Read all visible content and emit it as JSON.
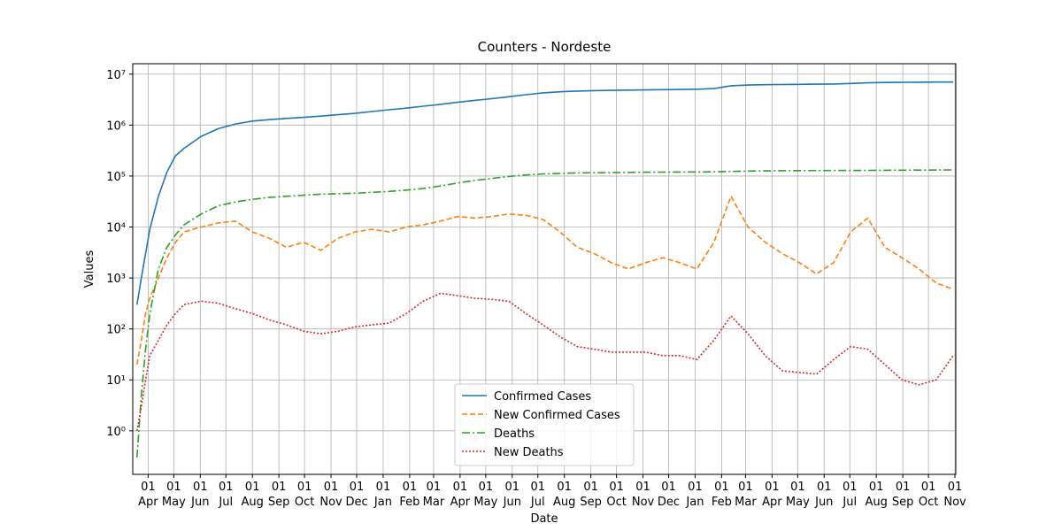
{
  "chart_data": {
    "type": "line",
    "title": "Counters - Nordeste",
    "xlabel": "Date",
    "ylabel": "Values",
    "yscale": "log",
    "grid": true,
    "legend": "lower center",
    "x": [
      5,
      10,
      15,
      20,
      30,
      40,
      50,
      60,
      80,
      100,
      120,
      140,
      160,
      180,
      200,
      220,
      240,
      260,
      280,
      300,
      320,
      340,
      360,
      380,
      400,
      420,
      440,
      460,
      480,
      500,
      520,
      540,
      560,
      580,
      600,
      620,
      640,
      660,
      680,
      700,
      720,
      740,
      760,
      780,
      800,
      820,
      840,
      860,
      880,
      900,
      920,
      940,
      960
    ],
    "xlim": [
      0,
      963
    ],
    "xticks": [
      {
        "value": 18,
        "label": "01\nApr"
      },
      {
        "value": 48,
        "label": "01\nMay"
      },
      {
        "value": 79,
        "label": "01\nJun"
      },
      {
        "value": 109,
        "label": "01\nJul"
      },
      {
        "value": 140,
        "label": "01\nAug"
      },
      {
        "value": 171,
        "label": "01\nSep"
      },
      {
        "value": 201,
        "label": "01\nOct"
      },
      {
        "value": 232,
        "label": "01\nNov"
      },
      {
        "value": 262,
        "label": "01\nDec"
      },
      {
        "value": 293,
        "label": "01\nJan"
      },
      {
        "value": 324,
        "label": "01\nFeb"
      },
      {
        "value": 352,
        "label": "01\nMar"
      },
      {
        "value": 383,
        "label": "01\nApr"
      },
      {
        "value": 413,
        "label": "01\nMay"
      },
      {
        "value": 444,
        "label": "01\nJun"
      },
      {
        "value": 474,
        "label": "01\nJul"
      },
      {
        "value": 505,
        "label": "01\nAug"
      },
      {
        "value": 536,
        "label": "01\nSep"
      },
      {
        "value": 566,
        "label": "01\nOct"
      },
      {
        "value": 597,
        "label": "01\nNov"
      },
      {
        "value": 627,
        "label": "01\nDec"
      },
      {
        "value": 658,
        "label": "01\nJan"
      },
      {
        "value": 689,
        "label": "01\nFeb"
      },
      {
        "value": 717,
        "label": "01\nMar"
      },
      {
        "value": 748,
        "label": "01\nApr"
      },
      {
        "value": 778,
        "label": "01\nMay"
      },
      {
        "value": 809,
        "label": "01\nJun"
      },
      {
        "value": 839,
        "label": "01\nJul"
      },
      {
        "value": 870,
        "label": "01\nAug"
      },
      {
        "value": 901,
        "label": "01\nSep"
      },
      {
        "value": 931,
        "label": "01\nOct"
      },
      {
        "value": 962,
        "label": "01\nNov"
      }
    ],
    "ylim": [
      0.14,
      16000000
    ],
    "yticks": [
      {
        "value": 1,
        "label": "10⁰"
      },
      {
        "value": 10,
        "label": "10¹"
      },
      {
        "value": 100,
        "label": "10²"
      },
      {
        "value": 1000,
        "label": "10³"
      },
      {
        "value": 10000,
        "label": "10⁴"
      },
      {
        "value": 100000,
        "label": "10⁵"
      },
      {
        "value": 1000000,
        "label": "10⁶"
      },
      {
        "value": 10000000,
        "label": "10⁷"
      }
    ],
    "series": [
      {
        "name": "Confirmed Cases",
        "color": "#1f77b4",
        "style": "solid",
        "values": [
          300,
          1000,
          3000,
          9000,
          40000,
          120000,
          250000,
          350000,
          600000,
          850000,
          1050000,
          1200000,
          1280000,
          1350000,
          1420000,
          1500000,
          1600000,
          1700000,
          1850000,
          2000000,
          2150000,
          2350000,
          2550000,
          2800000,
          3050000,
          3300000,
          3600000,
          3950000,
          4300000,
          4500000,
          4650000,
          4750000,
          4800000,
          4850000,
          4900000,
          4950000,
          5000000,
          5050000,
          5200000,
          5900000,
          6100000,
          6200000,
          6250000,
          6300000,
          6350000,
          6400000,
          6550000,
          6750000,
          6850000,
          6900000,
          6950000,
          7000000,
          7000000
        ]
      },
      {
        "name": "New Confirmed Cases",
        "color": "#ff7f0e",
        "style": "dashed",
        "values": [
          20,
          60,
          200,
          400,
          1000,
          2500,
          5000,
          8000,
          10000,
          12000,
          13000,
          8000,
          6000,
          4000,
          5000,
          3500,
          6000,
          8000,
          9000,
          8000,
          10000,
          11000,
          13000,
          16000,
          15000,
          16000,
          18000,
          17000,
          14000,
          8000,
          4000,
          3000,
          2000,
          1500,
          2000,
          2500,
          2000,
          1500,
          5000,
          40000,
          10000,
          5000,
          3000,
          2000,
          1200,
          2000,
          8000,
          15000,
          4000,
          2500,
          1500,
          800,
          600
        ]
      },
      {
        "name": "Deaths",
        "color": "#2ca02c",
        "style": "dashdot",
        "values": [
          0.3,
          5,
          40,
          200,
          1500,
          4000,
          7000,
          11000,
          18000,
          26000,
          31000,
          35000,
          38000,
          40000,
          42000,
          44000,
          45000,
          46000,
          48000,
          50000,
          53000,
          57000,
          64000,
          73000,
          82000,
          90000,
          98000,
          105000,
          110000,
          113000,
          115000,
          116000,
          117000,
          118000,
          119000,
          119500,
          120000,
          120500,
          121000,
          123000,
          125000,
          126000,
          127000,
          127500,
          128000,
          128500,
          129000,
          129500,
          130000,
          130500,
          131000,
          131500,
          132000
        ]
      },
      {
        "name": "New Deaths",
        "color": "#d62728",
        "style": "dotted",
        "values": [
          1,
          3,
          10,
          30,
          60,
          120,
          200,
          300,
          350,
          320,
          250,
          200,
          150,
          120,
          90,
          80,
          90,
          110,
          120,
          130,
          200,
          350,
          500,
          450,
          400,
          380,
          350,
          200,
          120,
          70,
          45,
          40,
          35,
          35,
          35,
          30,
          30,
          25,
          60,
          180,
          80,
          30,
          15,
          14,
          13,
          25,
          45,
          40,
          20,
          10,
          8,
          10,
          30
        ]
      }
    ]
  }
}
